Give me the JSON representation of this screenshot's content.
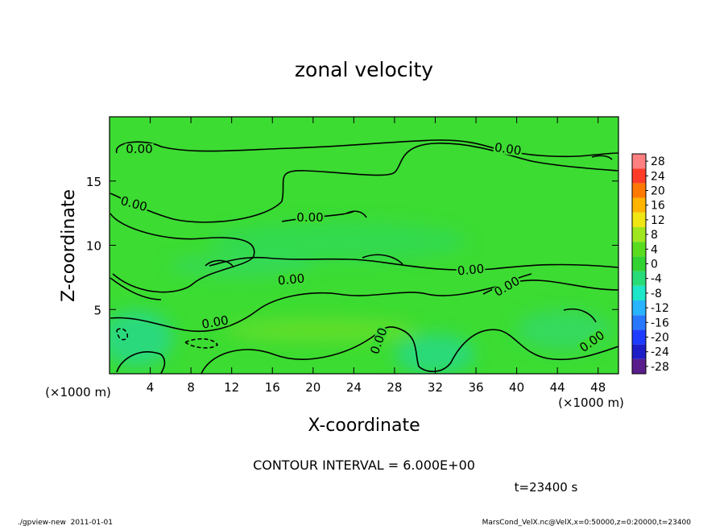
{
  "chart_data": {
    "type": "contour",
    "title": "zonal velocity",
    "xlabel": "X-coordinate",
    "ylabel": "Z-coordinate",
    "x_unit": "(×1000 m)",
    "y_unit": "(×1000 m)",
    "xlim": [
      0,
      50
    ],
    "ylim": [
      0,
      20
    ],
    "xticks": [
      4,
      8,
      12,
      16,
      20,
      24,
      28,
      32,
      36,
      40,
      44,
      48
    ],
    "yticks": [
      5,
      10,
      15
    ],
    "contour_labels": [
      "0.00",
      "0.00",
      "0.00",
      "0.00",
      "0.00",
      "0.00",
      "0.00",
      "0.00",
      "0.00",
      "0.00"
    ],
    "colorbar": {
      "bounds": [
        -30,
        -26,
        -22,
        -18,
        -14,
        -10,
        -6,
        -2,
        2,
        6,
        10,
        14,
        18,
        22,
        26,
        30
      ],
      "colors": [
        "#5a1e8c",
        "#1e1ec8",
        "#1e3cff",
        "#2878ff",
        "#28b4ff",
        "#1ee6c8",
        "#28dc78",
        "#32d232",
        "#5adc1e",
        "#a0e61e",
        "#f0e614",
        "#ffb400",
        "#ff7800",
        "#ff3c28",
        "#ff8080"
      ],
      "ticks": [
        -28,
        -24,
        -20,
        -16,
        -12,
        -8,
        -4,
        0,
        4,
        8,
        12,
        16,
        20,
        24,
        28
      ]
    },
    "contour_interval": "CONTOUR INTERVAL = 6.000E+00",
    "time_label": "t=23400 s",
    "footer_left": "./gpview-new  2011-01-01",
    "footer_right": "MarsCond_VelX.nc@VelX,x=0:50000,z=0:20000,t=23400"
  }
}
